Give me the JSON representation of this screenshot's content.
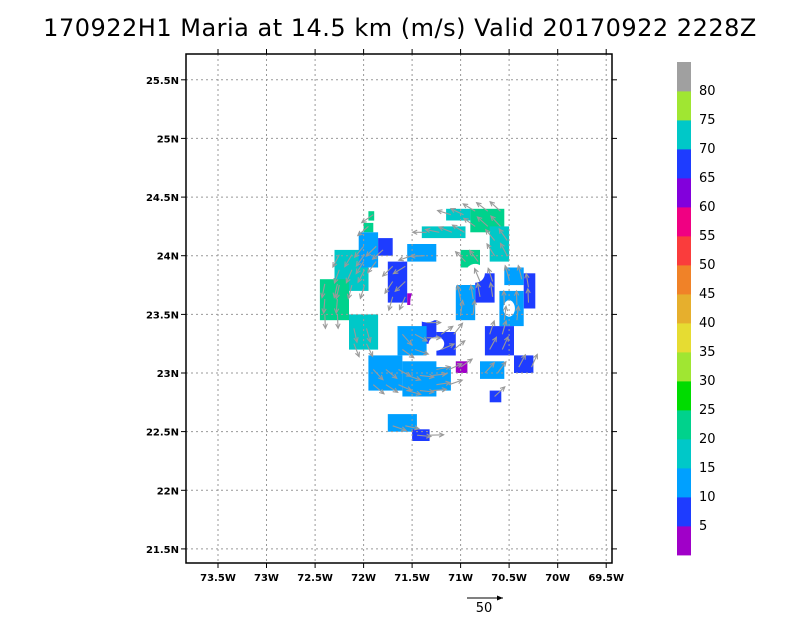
{
  "chart_data": {
    "type": "heatmap",
    "title": "170922H1 Maria at 14.5 km (m/s) Valid 20170922 2228Z",
    "xlabel": "",
    "ylabel": "",
    "xlim": [
      -73.83,
      -69.44
    ],
    "ylim": [
      21.38,
      25.72
    ],
    "grid": true,
    "x_ticks": [
      {
        "value": -73.5,
        "label": "73.5W"
      },
      {
        "value": -73.0,
        "label": "73W"
      },
      {
        "value": -72.5,
        "label": "72.5W"
      },
      {
        "value": -72.0,
        "label": "72W"
      },
      {
        "value": -71.5,
        "label": "71.5W"
      },
      {
        "value": -71.0,
        "label": "71W"
      },
      {
        "value": -70.5,
        "label": "70.5W"
      },
      {
        "value": -70.0,
        "label": "70W"
      },
      {
        "value": -69.5,
        "label": "69.5W"
      }
    ],
    "y_ticks": [
      {
        "value": 21.5,
        "label": "21.5N"
      },
      {
        "value": 22.0,
        "label": "22N"
      },
      {
        "value": 22.5,
        "label": "22.5N"
      },
      {
        "value": 23.0,
        "label": "23N"
      },
      {
        "value": 23.5,
        "label": "23.5N"
      },
      {
        "value": 24.0,
        "label": "24N"
      },
      {
        "value": 24.5,
        "label": "24.5N"
      },
      {
        "value": 25.0,
        "label": "25N"
      },
      {
        "value": 25.5,
        "label": "25.5N"
      }
    ],
    "colorbar": {
      "labels": [
        "5",
        "10",
        "15",
        "20",
        "25",
        "30",
        "35",
        "40",
        "45",
        "50",
        "55",
        "60",
        "65",
        "70",
        "75",
        "80"
      ],
      "colors": [
        "#a000c8",
        "#1e3cff",
        "#00a0ff",
        "#00c8c8",
        "#00d28c",
        "#00dc00",
        "#a0e632",
        "#e6dc32",
        "#e6af2d",
        "#f08228",
        "#fa3c3c",
        "#f00082",
        "#8200dc",
        "#1e3cff",
        "#00c8c8",
        "#a0e632",
        "#a0a0a0"
      ]
    },
    "vector_scale_label": "50",
    "cells": [
      {
        "lon": -72.0,
        "lat": 24.2,
        "dlon": 0.1,
        "dlat": 0.08,
        "bin": 4
      },
      {
        "lon": -71.95,
        "lat": 24.3,
        "dlon": 0.06,
        "dlat": 0.08,
        "bin": 4
      },
      {
        "lon": -72.3,
        "lat": 23.7,
        "dlon": 0.35,
        "dlat": 0.35,
        "bin": 3
      },
      {
        "lon": -72.45,
        "lat": 23.45,
        "dlon": 0.3,
        "dlat": 0.35,
        "bin": 4
      },
      {
        "lon": -72.15,
        "lat": 23.2,
        "dlon": 0.3,
        "dlat": 0.3,
        "bin": 3
      },
      {
        "lon": -72.05,
        "lat": 23.9,
        "dlon": 0.2,
        "dlat": 0.3,
        "bin": 2
      },
      {
        "lon": -71.85,
        "lat": 24.0,
        "dlon": 0.15,
        "dlat": 0.15,
        "bin": 1
      },
      {
        "lon": -71.75,
        "lat": 23.6,
        "dlon": 0.2,
        "dlat": 0.35,
        "bin": 1
      },
      {
        "lon": -71.55,
        "lat": 23.95,
        "dlon": 0.3,
        "dlat": 0.15,
        "bin": 2
      },
      {
        "lon": -71.4,
        "lat": 24.15,
        "dlon": 0.45,
        "dlat": 0.1,
        "bin": 3
      },
      {
        "lon": -71.15,
        "lat": 24.3,
        "dlon": 0.25,
        "dlat": 0.1,
        "bin": 3
      },
      {
        "lon": -70.9,
        "lat": 24.2,
        "dlon": 0.35,
        "dlat": 0.2,
        "bin": 4
      },
      {
        "lon": -70.7,
        "lat": 23.95,
        "dlon": 0.2,
        "dlat": 0.3,
        "bin": 3
      },
      {
        "lon": -71.0,
        "lat": 23.9,
        "dlon": 0.2,
        "dlat": 0.15,
        "bin": 4
      },
      {
        "lon": -70.55,
        "lat": 23.75,
        "dlon": 0.2,
        "dlat": 0.15,
        "bin": 2
      },
      {
        "lon": -70.35,
        "lat": 23.55,
        "dlon": 0.12,
        "dlat": 0.3,
        "bin": 1
      },
      {
        "lon": -70.6,
        "lat": 23.4,
        "dlon": 0.25,
        "dlat": 0.3,
        "bin": 2
      },
      {
        "lon": -70.85,
        "lat": 23.6,
        "dlon": 0.2,
        "dlat": 0.25,
        "bin": 1
      },
      {
        "lon": -71.05,
        "lat": 23.45,
        "dlon": 0.2,
        "dlat": 0.3,
        "bin": 2
      },
      {
        "lon": -70.75,
        "lat": 23.15,
        "dlon": 0.3,
        "dlat": 0.25,
        "bin": 1
      },
      {
        "lon": -70.45,
        "lat": 23.0,
        "dlon": 0.2,
        "dlat": 0.15,
        "bin": 1
      },
      {
        "lon": -70.8,
        "lat": 22.95,
        "dlon": 0.25,
        "dlat": 0.15,
        "bin": 2
      },
      {
        "lon": -70.7,
        "lat": 22.75,
        "dlon": 0.12,
        "dlat": 0.1,
        "bin": 1
      },
      {
        "lon": -71.25,
        "lat": 23.15,
        "dlon": 0.2,
        "dlat": 0.2,
        "bin": 1
      },
      {
        "lon": -71.05,
        "lat": 23.0,
        "dlon": 0.12,
        "dlat": 0.1,
        "bin": 0
      },
      {
        "lon": -71.4,
        "lat": 23.25,
        "dlon": 0.15,
        "dlat": 0.2,
        "bin": 1
      },
      {
        "lon": -71.65,
        "lat": 23.15,
        "dlon": 0.3,
        "dlat": 0.25,
        "bin": 2
      },
      {
        "lon": -71.95,
        "lat": 22.85,
        "dlon": 0.35,
        "dlat": 0.3,
        "bin": 2
      },
      {
        "lon": -71.6,
        "lat": 22.8,
        "dlon": 0.35,
        "dlat": 0.3,
        "bin": 2
      },
      {
        "lon": -71.3,
        "lat": 22.85,
        "dlon": 0.2,
        "dlat": 0.2,
        "bin": 2
      },
      {
        "lon": -71.75,
        "lat": 22.5,
        "dlon": 0.3,
        "dlat": 0.15,
        "bin": 2
      },
      {
        "lon": -71.5,
        "lat": 22.42,
        "dlon": 0.18,
        "dlat": 0.1,
        "bin": 1
      },
      {
        "lon": -71.55,
        "lat": 23.58,
        "dlon": 0.05,
        "dlat": 0.1,
        "bin": 0
      }
    ],
    "holes": [
      {
        "lon": -71.35,
        "lat": 23.6,
        "rx": 0.17,
        "ry": 0.17
      },
      {
        "lon": -71.15,
        "lat": 23.8,
        "rx": 0.12,
        "ry": 0.12
      },
      {
        "lon": -70.85,
        "lat": 23.85,
        "rx": 0.1,
        "ry": 0.08
      },
      {
        "lon": -70.5,
        "lat": 23.55,
        "rx": 0.06,
        "ry": 0.07
      },
      {
        "lon": -71.25,
        "lat": 23.25,
        "rx": 0.08,
        "ry": 0.06
      }
    ]
  }
}
